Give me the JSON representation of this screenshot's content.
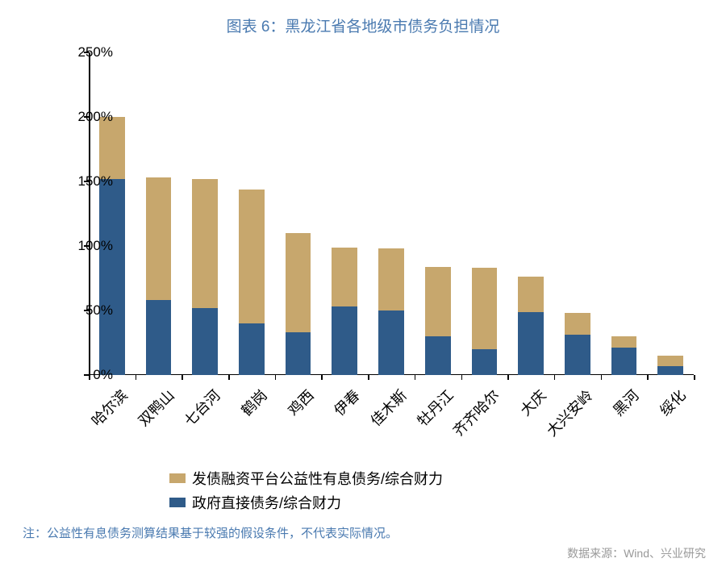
{
  "title": "图表 6：黑龙江省各地级市债务负担情况",
  "chart": {
    "type": "stacked-bar",
    "background_color": "#ffffff",
    "axis_color": "#000000",
    "y_axis": {
      "min": 0,
      "max": 250,
      "tick_step": 50,
      "suffix": "%",
      "label_fontsize": 17
    },
    "bar_width_ratio": 0.55,
    "series": [
      {
        "key": "gov_direct",
        "label": "政府直接债务/综合财力",
        "color": "#2f5b89"
      },
      {
        "key": "platform",
        "label": "发债融资平台公益性有息债务/综合财力",
        "color": "#c7a76d"
      }
    ],
    "categories": [
      {
        "name": "哈尔滨",
        "gov_direct": 152,
        "platform": 48
      },
      {
        "name": "双鸭山",
        "gov_direct": 58,
        "platform": 95
      },
      {
        "name": "七台河",
        "gov_direct": 52,
        "platform": 100
      },
      {
        "name": "鹤岗",
        "gov_direct": 40,
        "platform": 104
      },
      {
        "name": "鸡西",
        "gov_direct": 33,
        "platform": 77
      },
      {
        "name": "伊春",
        "gov_direct": 53,
        "platform": 46
      },
      {
        "name": "佳木斯",
        "gov_direct": 50,
        "platform": 48
      },
      {
        "name": "牡丹江",
        "gov_direct": 30,
        "platform": 54
      },
      {
        "name": "齐齐哈尔",
        "gov_direct": 20,
        "platform": 63
      },
      {
        "name": "大庆",
        "gov_direct": 49,
        "platform": 27
      },
      {
        "name": "大兴安岭",
        "gov_direct": 31,
        "platform": 17
      },
      {
        "name": "黑河",
        "gov_direct": 21,
        "platform": 9
      },
      {
        "name": "绥化",
        "gov_direct": 7,
        "platform": 8
      }
    ],
    "x_label_fontsize": 18,
    "x_label_rotation_deg": -45
  },
  "legend": {
    "items": [
      {
        "color": "#c7a76d",
        "label": "发债融资平台公益性有息债务/综合财力"
      },
      {
        "color": "#2f5b89",
        "label": "政府直接债务/综合财力"
      }
    ],
    "fontsize": 18
  },
  "footnote": "注：公益性有息债务测算结果基于较强的假设条件，不代表实际情况。",
  "source": "数据来源：Wind、兴业研究"
}
